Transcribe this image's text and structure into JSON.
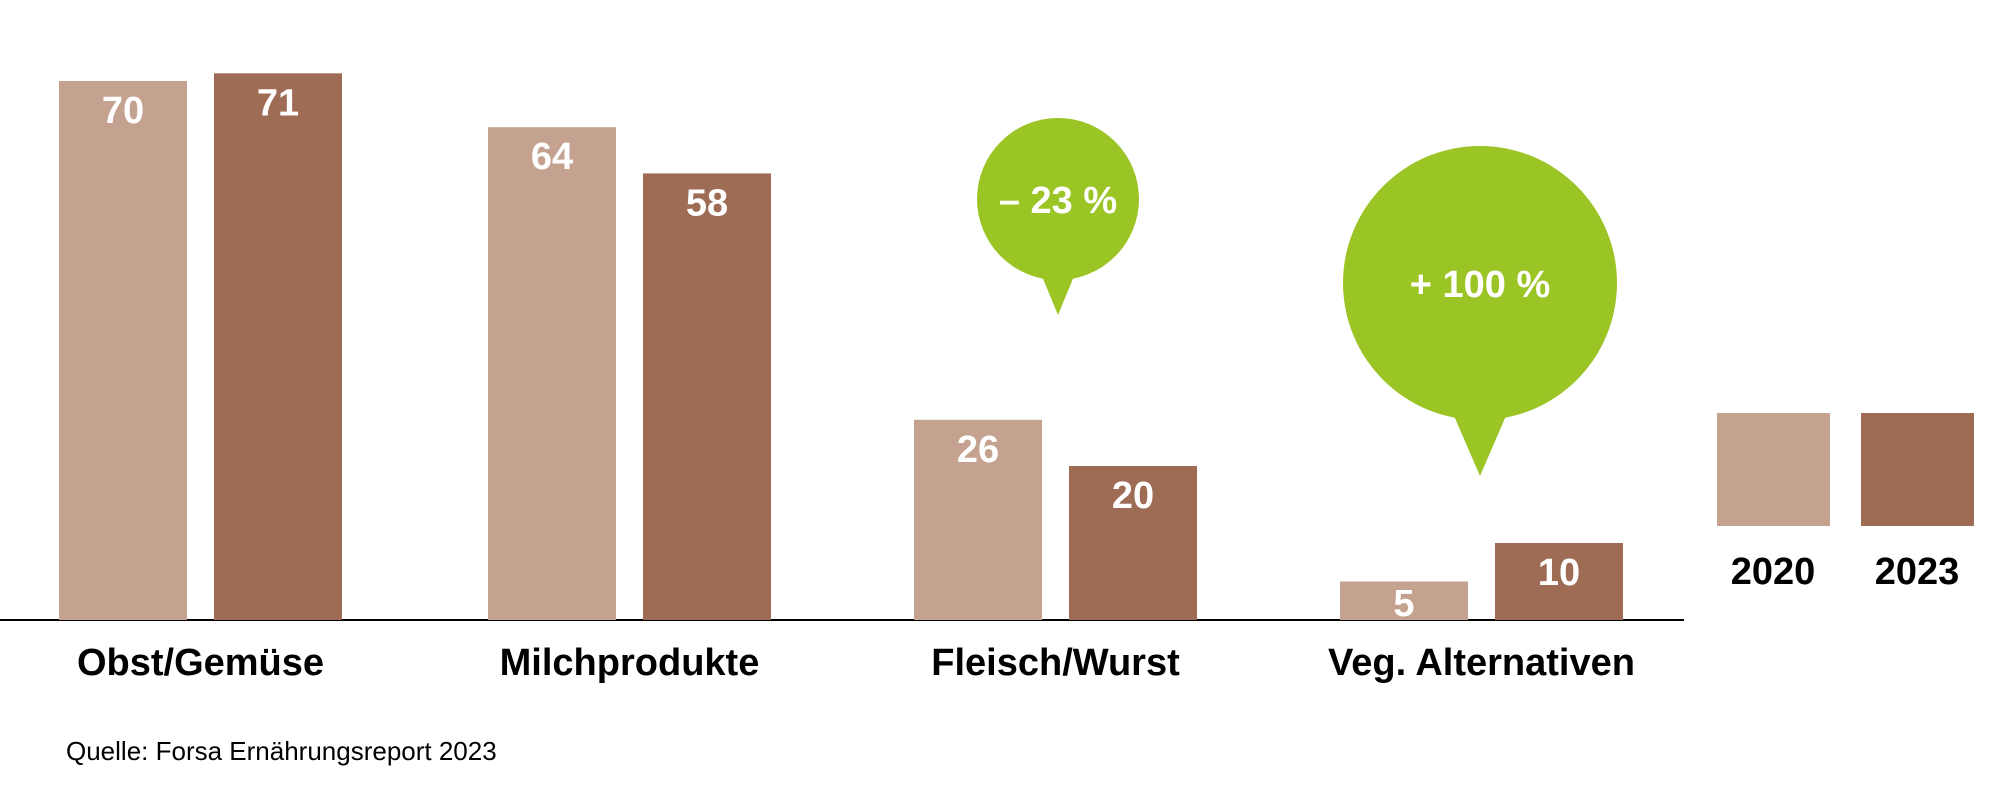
{
  "chart_data": {
    "type": "bar",
    "categories": [
      "Obst/Gemüse",
      "Milchprodukte",
      "Fleisch/Wurst",
      "Veg. Alternativen"
    ],
    "series": [
      {
        "name": "2020",
        "values": [
          70,
          64,
          26,
          5
        ],
        "color": "#c4a28f"
      },
      {
        "name": "2023",
        "values": [
          71,
          58,
          20,
          10
        ],
        "color": "#9e6b55"
      }
    ],
    "annotations": [
      {
        "category": "Fleisch/Wurst",
        "text": "– 23 %",
        "color": "#9bc425"
      },
      {
        "category": "Veg. Alternativen",
        "text": "+ 100 %",
        "color": "#9bc425"
      }
    ],
    "legend_position": "right",
    "grid": false,
    "ylim": [
      0,
      71
    ],
    "source": "Quelle: Forsa Ernährungsreport 2023"
  }
}
